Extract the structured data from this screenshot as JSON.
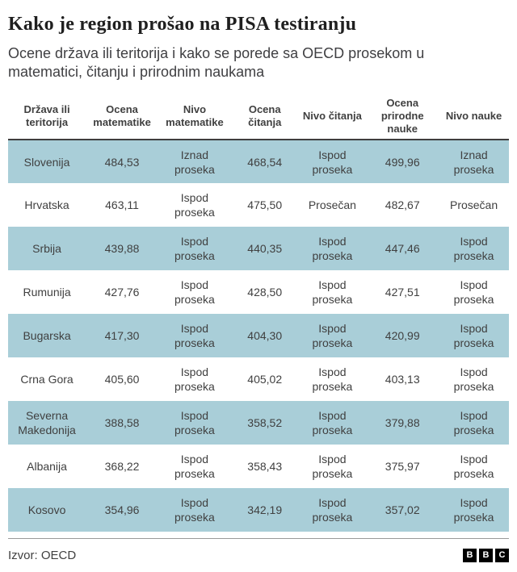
{
  "header": {
    "title": "Kako je region prošao na PISA testiranju",
    "subtitle": "Ocene država ili teritorija i kako se porede sa OECD prosekom u matematici, čitanju i prirodnim naukama"
  },
  "chart_data": {
    "type": "table",
    "title": "Kako je region prošao na PISA testiranju",
    "subtitle": "Ocene država ili teritorija i kako se porede sa OECD prosekom u matematici, čitanju i prirodnim naukama",
    "columns": [
      "Država ili teritorija",
      "Ocena matematike",
      "Nivo matematike",
      "Ocena čitanja",
      "Nivo čitanja",
      "Ocena prirodne nauke",
      "Nivo nauke"
    ],
    "rows": [
      {
        "country": "Slovenija",
        "math_score": "484,53",
        "math_level": "Iznad proseka",
        "reading_score": "468,54",
        "reading_level": "Ispod proseka",
        "science_score": "499,96",
        "science_level": "Iznad proseka"
      },
      {
        "country": "Hrvatska",
        "math_score": "463,11",
        "math_level": "Ispod proseka",
        "reading_score": "475,50",
        "reading_level": "Prosečan",
        "science_score": "482,67",
        "science_level": "Prosečan"
      },
      {
        "country": "Srbija",
        "math_score": "439,88",
        "math_level": "Ispod proseka",
        "reading_score": "440,35",
        "reading_level": "Ispod proseka",
        "science_score": "447,46",
        "science_level": "Ispod proseka"
      },
      {
        "country": "Rumunija",
        "math_score": "427,76",
        "math_level": "Ispod proseka",
        "reading_score": "428,50",
        "reading_level": "Ispod proseka",
        "science_score": "427,51",
        "science_level": "Ispod proseka"
      },
      {
        "country": "Bugarska",
        "math_score": "417,30",
        "math_level": "Ispod proseka",
        "reading_score": "404,30",
        "reading_level": "Ispod proseka",
        "science_score": "420,99",
        "science_level": "Ispod proseka"
      },
      {
        "country": "Crna Gora",
        "math_score": "405,60",
        "math_level": "Ispod proseka",
        "reading_score": "405,02",
        "reading_level": "Ispod proseka",
        "science_score": "403,13",
        "science_level": "Ispod proseka"
      },
      {
        "country": "Severna Makedonija",
        "math_score": "388,58",
        "math_level": "Ispod proseka",
        "reading_score": "358,52",
        "reading_level": "Ispod proseka",
        "science_score": "379,88",
        "science_level": "Ispod proseka"
      },
      {
        "country": "Albanija",
        "math_score": "368,22",
        "math_level": "Ispod proseka",
        "reading_score": "358,43",
        "reading_level": "Ispod proseka",
        "science_score": "375,97",
        "science_level": "Ispod proseka"
      },
      {
        "country": "Kosovo",
        "math_score": "354,96",
        "math_level": "Ispod proseka",
        "reading_score": "342,19",
        "reading_level": "Ispod proseka",
        "science_score": "357,02",
        "science_level": "Ispod proseka"
      }
    ],
    "layout_hints": {
      "highlighted_rows": "1st, 3rd, 5th, 7th, 9th rows have light-blue background",
      "cell_alignment": "center",
      "decimal_separator": "comma"
    },
    "source": "Izvor: OECD"
  },
  "footer": {
    "source": "Izvor: OECD",
    "logo_letters": [
      "B",
      "B",
      "C"
    ]
  },
  "colors": {
    "row_highlight": "#a9ced8",
    "header_rule": "#3e3e3e",
    "footer_rule": "#9a9a9a",
    "title_text": "#1f1f1f",
    "body_text": "#404040",
    "logo_bg": "#000000",
    "logo_text": "#ffffff"
  }
}
